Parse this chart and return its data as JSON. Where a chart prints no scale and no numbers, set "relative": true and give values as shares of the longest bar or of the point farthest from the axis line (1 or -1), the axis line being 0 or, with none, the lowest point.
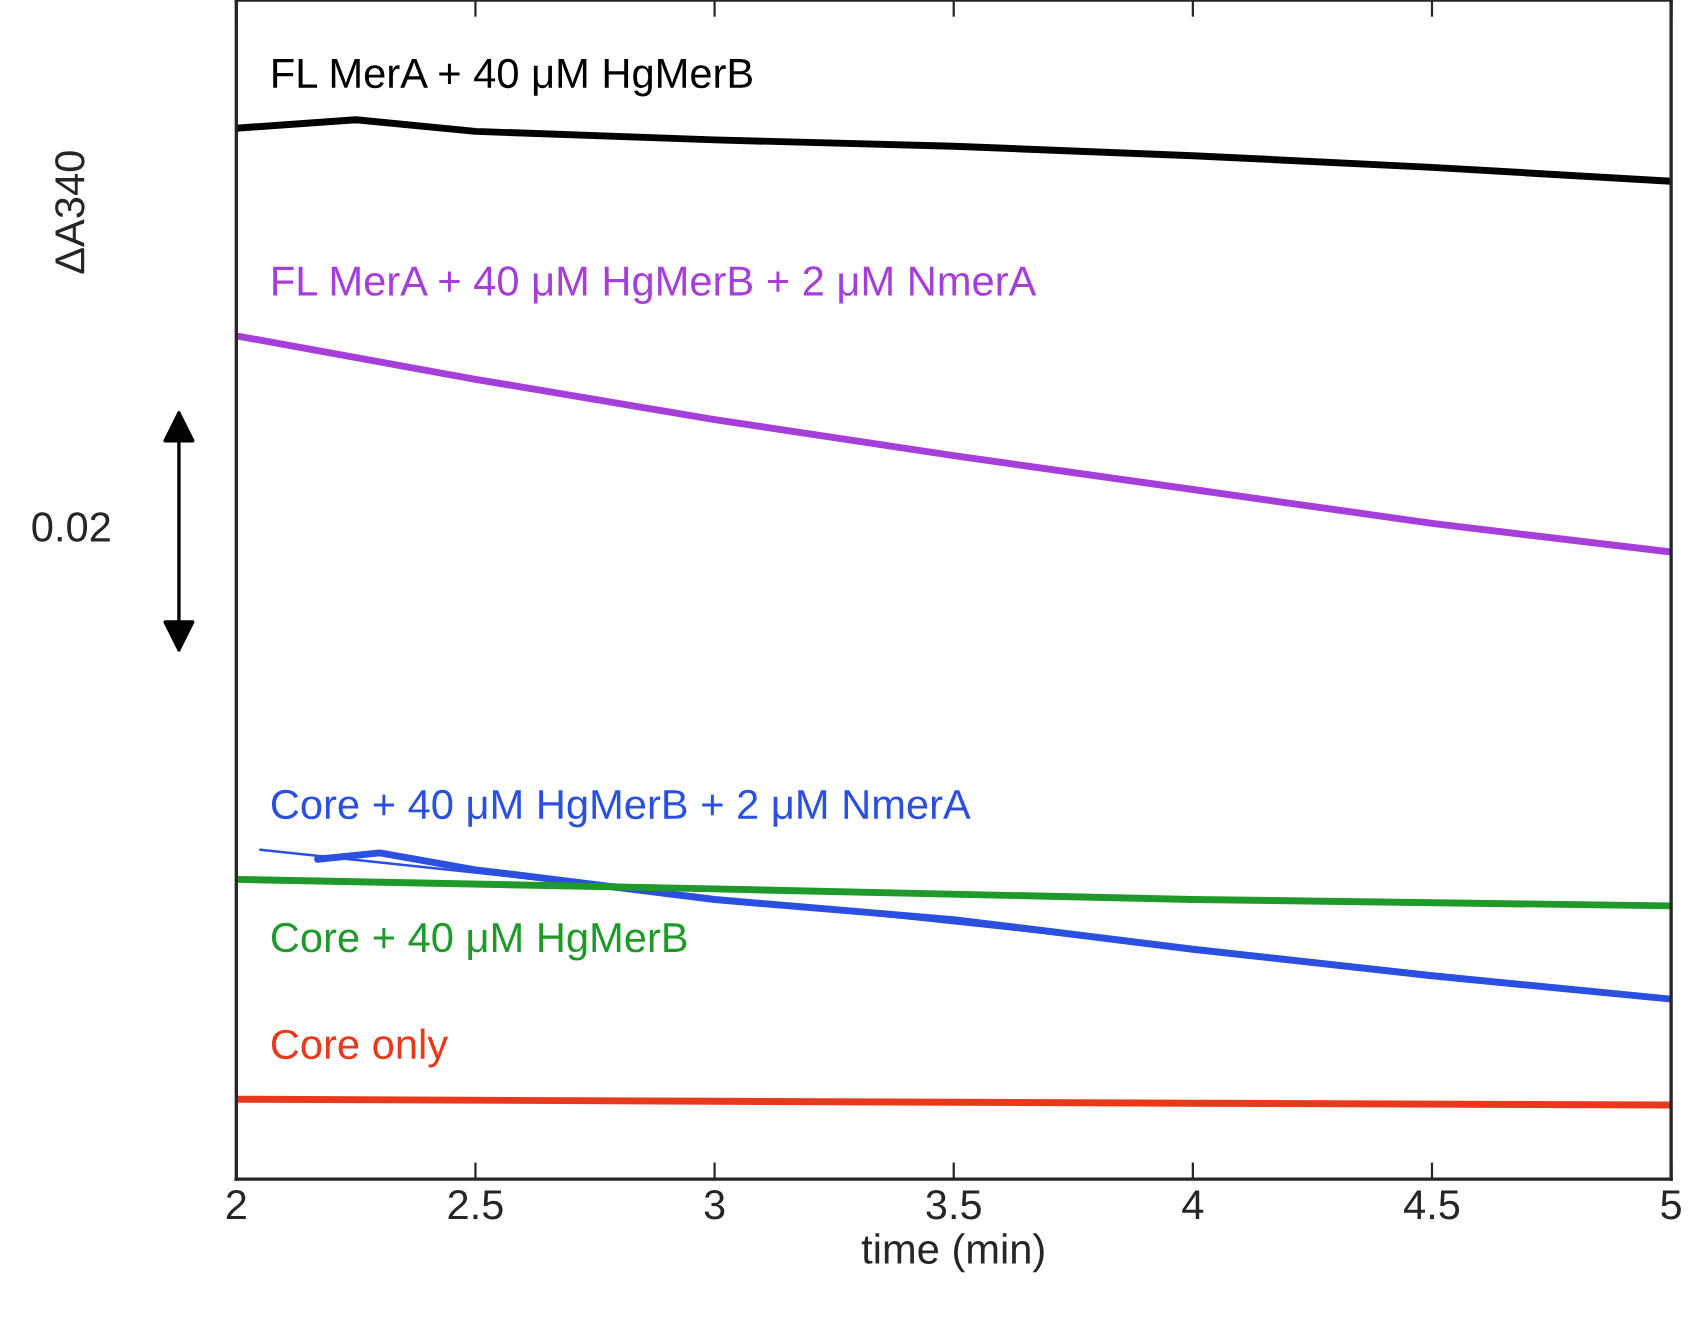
{
  "chart_data": {
    "type": "line",
    "relative": true,
    "xlabel": "time (min)",
    "ylabel": "ΔA340",
    "xlim": [
      2,
      5
    ],
    "xticks": [
      2,
      2.5,
      3,
      3.5,
      4,
      4.5,
      5
    ],
    "tick_labels": "x",
    "grid": false,
    "legend": false,
    "marker": "none",
    "line_style": "solid",
    "annotations": [
      "0.02"
    ],
    "series": [
      {
        "name": "FL MerA + 40 μM HgMerB",
        "color": "#000000",
        "x": [
          2,
          2.25,
          2.5,
          3,
          3.5,
          4,
          4.5,
          5
        ],
        "values": [
          0.992,
          1.0,
          0.989,
          0.981,
          0.975,
          0.966,
          0.955,
          0.942
        ]
      },
      {
        "name": "FL MerA + 40 μM HgMerB + 2 μM NmerA",
        "color": "#a63fd9",
        "x": [
          2,
          2.5,
          3,
          3.5,
          4,
          4.5,
          5
        ],
        "values": [
          0.796,
          0.755,
          0.717,
          0.683,
          0.651,
          0.619,
          0.592
        ]
      },
      {
        "name": "Core + 40 μM HgMerB + 2 μM NmerA",
        "color": "#2b50e0",
        "x": [
          2.17,
          2.3,
          2.5,
          3,
          3.5,
          4,
          4.5,
          5
        ],
        "values": [
          0.302,
          0.308,
          0.292,
          0.264,
          0.245,
          0.217,
          0.192,
          0.17
        ]
      },
      {
        "color": "#2b50e0",
        "type": "line",
        "x": [
          2.05,
          5
        ],
        "values": [
          0.311,
          0.17
        ]
      },
      {
        "name": "Core + 40 μM HgMerB",
        "color": "#1f9a2a",
        "x": [
          2,
          3,
          4,
          5
        ],
        "values": [
          0.283,
          0.274,
          0.264,
          0.258
        ]
      },
      {
        "name": "Core only",
        "color": "#e8391c",
        "x": [
          2,
          3,
          4,
          5
        ],
        "values": [
          0.0755,
          0.0736,
          0.0717,
          0.07
        ]
      }
    ]
  }
}
